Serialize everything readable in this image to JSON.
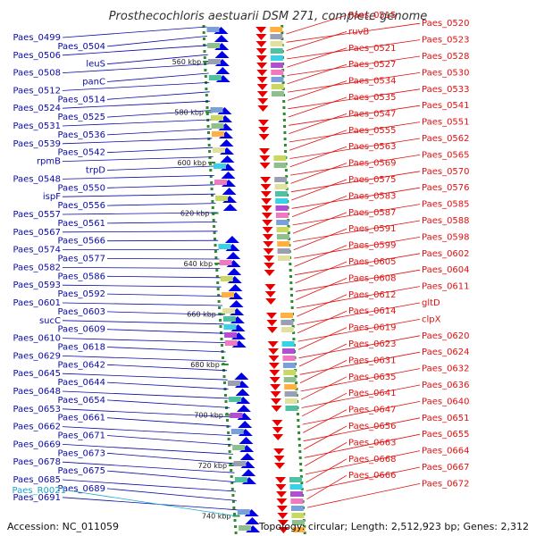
{
  "title": "Prosthecochloris aestuarii DSM 271, complete genome",
  "footer": {
    "accession": "Accession: NC_011059",
    "details": "Topology: circular; Length: 2,512,923 bp; Genes: 2,312"
  },
  "colors": {
    "left_labels": "#0a0aa8",
    "right_labels": "#e01010",
    "rna_label": "#1aa8c8",
    "backbone": "#8a8a8a",
    "tick_marks": "#2e8b2e",
    "reverse_strand_arrows": "#e80000",
    "forward_strand_arrows": "#0000e8"
  },
  "scale_labels": [
    "560 kbp",
    "580 kbp",
    "600 kbp",
    "620 kbp",
    "640 kbp",
    "660 kbp",
    "680 kbp",
    "700 kbp",
    "720 kbp",
    "740 kbp"
  ],
  "left_labels": [
    "Paes_0499",
    "Paes_0504",
    "Paes_0506",
    "leuS",
    "Paes_0508",
    "panC",
    "Paes_0512",
    "Paes_0514",
    "Paes_0524",
    "Paes_0525",
    "Paes_0531",
    "Paes_0536",
    "Paes_0539",
    "Paes_0542",
    "rpmB",
    "trpD",
    "Paes_0548",
    "Paes_0550",
    "ispF",
    "Paes_0556",
    "Paes_0557",
    "Paes_0561",
    "Paes_0567",
    "Paes_0566",
    "Paes_0574",
    "Paes_0577",
    "Paes_0582",
    "Paes_0586",
    "Paes_0593",
    "Paes_0592",
    "Paes_0601",
    "Paes_0603",
    "sucC",
    "Paes_0609",
    "Paes_0610",
    "Paes_0618",
    "Paes_0629",
    "Paes_0642",
    "Paes_0645",
    "Paes_0644",
    "Paes_0648",
    "Paes_0654",
    "Paes_0653",
    "Paes_0661",
    "Paes_0662",
    "Paes_0671",
    "Paes_0669",
    "Paes_0673",
    "Paes_0678",
    "Paes_0675",
    "Paes_0685",
    "Paes_0689",
    "Paes_0691"
  ],
  "rna_labels": [
    "Paes_R0021"
  ],
  "right_labels": [
    "Paes_0515",
    "Paes_0520",
    "ruvB",
    "Paes_0523",
    "Paes_0521",
    "Paes_0528",
    "Paes_0527",
    "Paes_0530",
    "Paes_0534",
    "Paes_0533",
    "Paes_0535",
    "Paes_0541",
    "Paes_0547",
    "Paes_0551",
    "Paes_0555",
    "Paes_0562",
    "Paes_0563",
    "Paes_0565",
    "Paes_0569",
    "Paes_0570",
    "Paes_0575",
    "Paes_0576",
    "Paes_0583",
    "Paes_0585",
    "Paes_0587",
    "Paes_0588",
    "Paes_0591",
    "Paes_0598",
    "Paes_0599",
    "Paes_0602",
    "Paes_0605",
    "Paes_0604",
    "Paes_0608",
    "Paes_0611",
    "Paes_0612",
    "gltD",
    "Paes_0614",
    "clpX",
    "Paes_0619",
    "Paes_0620",
    "Paes_0623",
    "Paes_0624",
    "Paes_0631",
    "Paes_0632",
    "Paes_0635",
    "Paes_0636",
    "Paes_0641",
    "Paes_0640",
    "Paes_0647",
    "Paes_0651",
    "Paes_0656",
    "Paes_0655",
    "Paes_0663",
    "Paes_0664",
    "Paes_0668",
    "Paes_0667",
    "Paes_0666",
    "Paes_0672"
  ]
}
